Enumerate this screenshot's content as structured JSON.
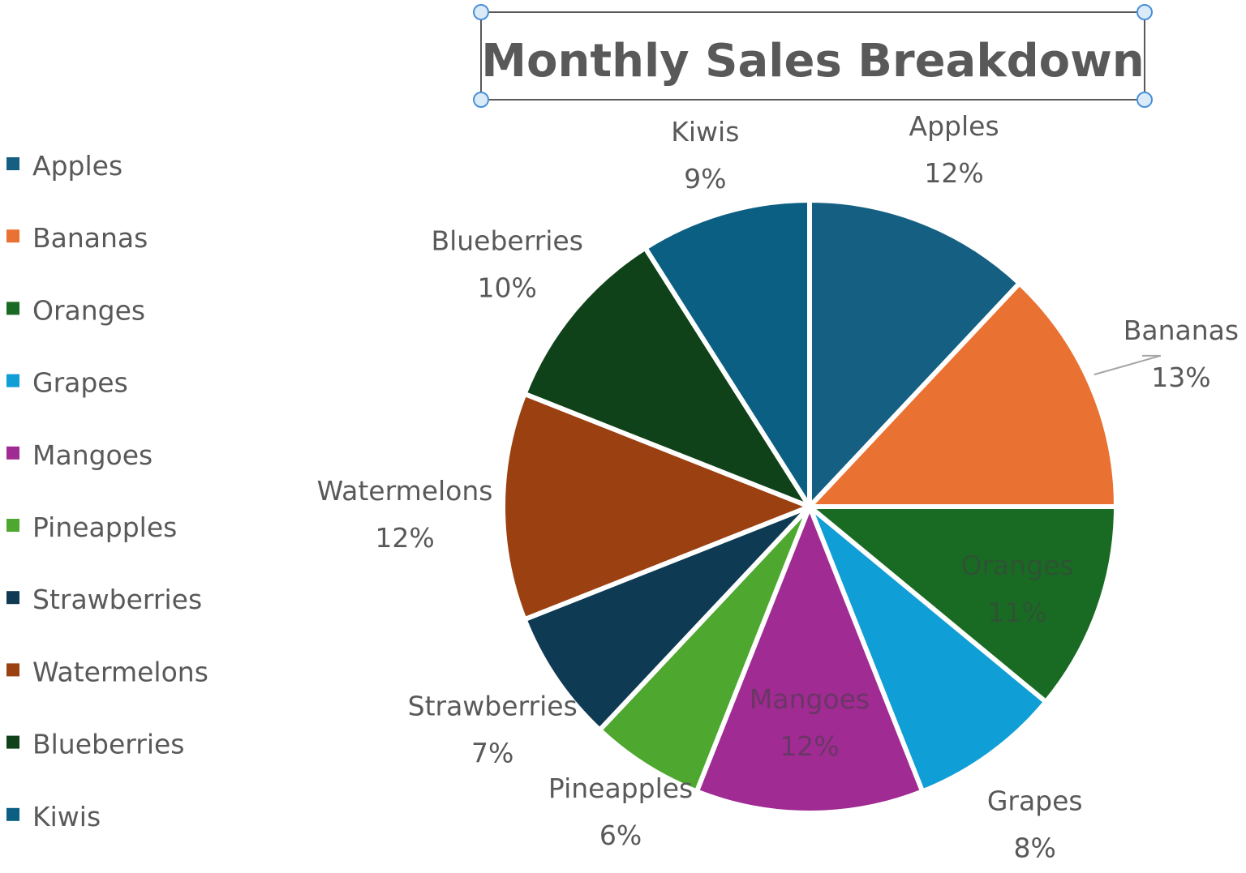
{
  "chart_data": {
    "type": "pie",
    "title": "Monthly Sales Breakdown",
    "legend_position": "left",
    "categories": [
      "Apples",
      "Bananas",
      "Oranges",
      "Grapes",
      "Mangoes",
      "Pineapples",
      "Strawberries",
      "Watermelons",
      "Blueberries",
      "Kiwis"
    ],
    "values": [
      12,
      13,
      11,
      8,
      12,
      6,
      7,
      12,
      10,
      9
    ],
    "labels": [
      "12%",
      "13%",
      "11%",
      "8%",
      "12%",
      "6%",
      "7%",
      "12%",
      "10%",
      "9%"
    ],
    "colors": [
      "#156082",
      "#E97132",
      "#196B24",
      "#0F9ED5",
      "#A02B93",
      "#4EA72E",
      "#0E3A53",
      "#9A4011",
      "#0F4219",
      "#0B5F83"
    ]
  }
}
